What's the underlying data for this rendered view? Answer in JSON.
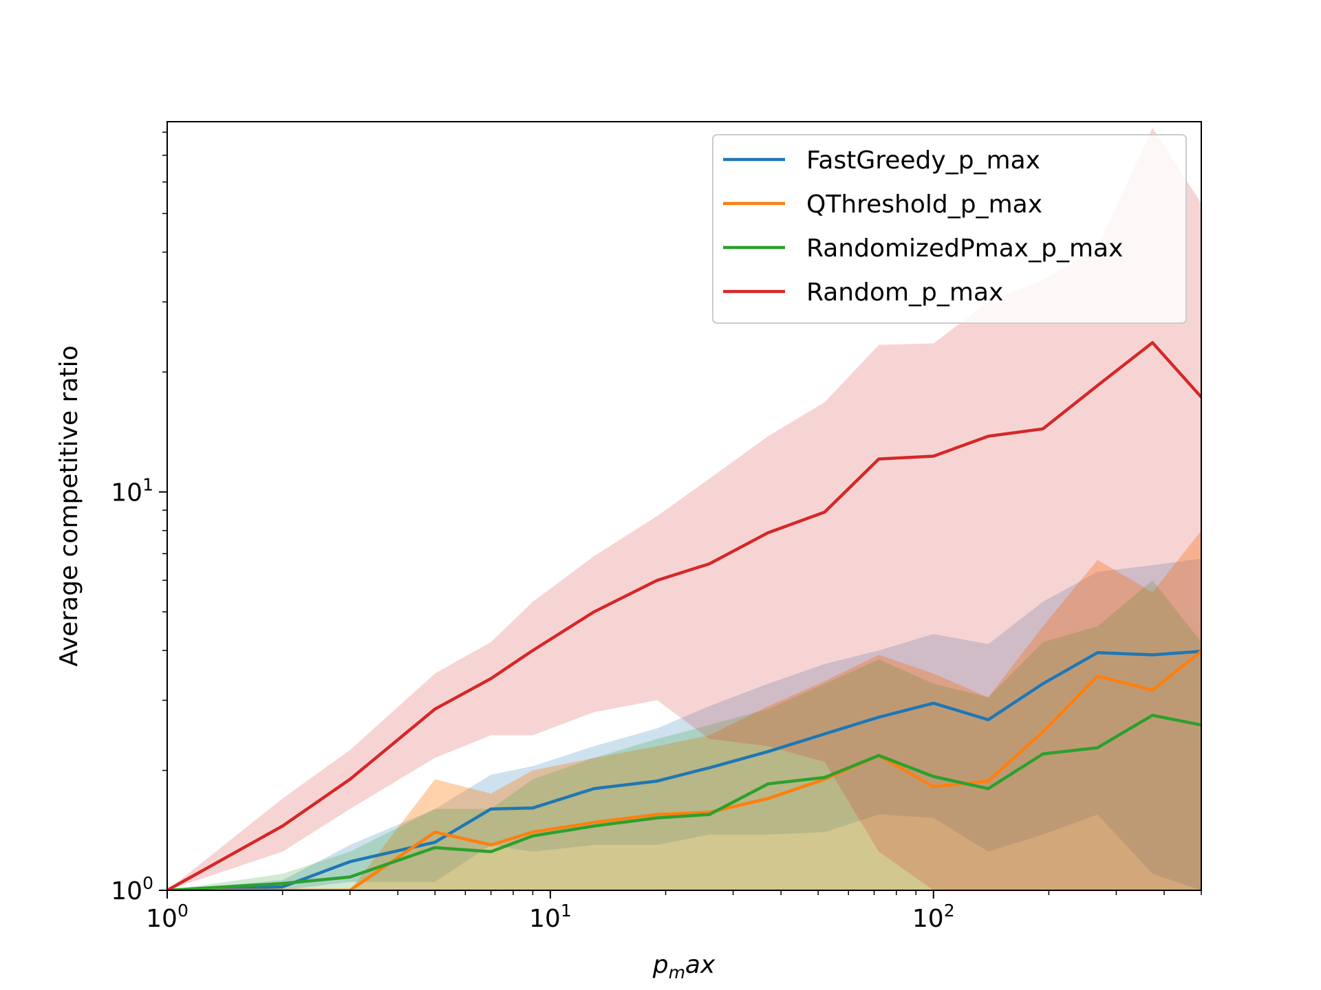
{
  "chart_data": {
    "type": "line",
    "xscale": "log",
    "yscale": "log",
    "xlim": [
      1,
      500
    ],
    "ylim": [
      1,
      85
    ],
    "xlabel": {
      "base": "p",
      "sub": "m",
      "rest": "ax"
    },
    "ylabel": "Average competitive ratio",
    "grid": false,
    "legend_position": "top-right",
    "x_ticks": [
      {
        "value": 1,
        "base": "10",
        "exp": "0"
      },
      {
        "value": 10,
        "base": "10",
        "exp": "1"
      },
      {
        "value": 100,
        "base": "10",
        "exp": "2"
      }
    ],
    "y_ticks": [
      {
        "value": 1,
        "base": "10",
        "exp": "0"
      },
      {
        "value": 10,
        "base": "10",
        "exp": "1"
      }
    ],
    "x": [
      1,
      2,
      3,
      5,
      7,
      9,
      13,
      19,
      26,
      37,
      52,
      72,
      100,
      139,
      193,
      268,
      373,
      500
    ],
    "series": [
      {
        "name": "FastGreedy_p_max",
        "color": "#1f77b4",
        "band_opacity": 0.22,
        "values": [
          1.0,
          1.02,
          1.18,
          1.32,
          1.6,
          1.61,
          1.8,
          1.88,
          2.03,
          2.23,
          2.47,
          2.72,
          2.95,
          2.68,
          3.3,
          3.95,
          3.9,
          3.98
        ],
        "upper": [
          1.0,
          1.06,
          1.3,
          1.6,
          1.95,
          2.05,
          2.3,
          2.55,
          2.9,
          3.3,
          3.7,
          4.0,
          4.4,
          4.15,
          5.3,
          6.3,
          6.55,
          6.8
        ],
        "lower": [
          1.0,
          1.0,
          1.05,
          1.05,
          1.3,
          1.25,
          1.3,
          1.3,
          1.38,
          1.38,
          1.4,
          1.55,
          1.52,
          1.25,
          1.38,
          1.55,
          1.1,
          1.0
        ]
      },
      {
        "name": "QThreshold_p_max",
        "color": "#ff7f0e",
        "band_opacity": 0.35,
        "values": [
          1.0,
          1.0,
          1.0,
          1.4,
          1.3,
          1.4,
          1.48,
          1.55,
          1.57,
          1.7,
          1.9,
          2.18,
          1.82,
          1.88,
          2.5,
          3.45,
          3.18,
          3.98
        ],
        "upper": [
          1.0,
          1.0,
          1.0,
          1.9,
          1.75,
          2.0,
          2.15,
          2.3,
          2.45,
          2.9,
          3.35,
          3.9,
          3.5,
          3.05,
          4.6,
          6.75,
          5.6,
          8.0
        ],
        "lower": [
          1.0,
          1.0,
          1.0,
          1.0,
          1.0,
          1.0,
          1.0,
          1.0,
          1.0,
          1.0,
          1.0,
          1.0,
          1.0,
          1.0,
          1.0,
          1.0,
          1.0,
          1.0
        ]
      },
      {
        "name": "RandomizedPmax_p_max",
        "color": "#2ca02c",
        "band_opacity": 0.22,
        "values": [
          1.0,
          1.04,
          1.08,
          1.28,
          1.25,
          1.37,
          1.45,
          1.52,
          1.55,
          1.85,
          1.92,
          2.18,
          1.93,
          1.8,
          2.2,
          2.28,
          2.75,
          2.6
        ],
        "upper": [
          1.0,
          1.1,
          1.25,
          1.6,
          1.6,
          1.9,
          2.15,
          2.4,
          2.6,
          2.85,
          3.3,
          3.8,
          3.3,
          3.05,
          4.2,
          4.6,
          6.0,
          4.2
        ],
        "lower": [
          1.0,
          1.0,
          1.0,
          1.0,
          1.0,
          1.0,
          1.0,
          1.0,
          1.0,
          1.0,
          1.0,
          1.0,
          1.0,
          1.0,
          1.0,
          1.0,
          1.0,
          1.0
        ]
      },
      {
        "name": "Random_p_max",
        "color": "#d62728",
        "band_opacity": 0.2,
        "values": [
          1.0,
          1.45,
          1.9,
          2.85,
          3.4,
          4.0,
          5.0,
          6.0,
          6.6,
          7.9,
          8.9,
          12.1,
          12.3,
          13.8,
          14.4,
          18.5,
          23.7,
          17.3
        ],
        "upper": [
          1.0,
          1.7,
          2.25,
          3.5,
          4.2,
          5.3,
          6.9,
          8.7,
          10.8,
          13.8,
          16.8,
          23.4,
          23.6,
          30.0,
          34.0,
          41.0,
          82.0,
          53.0
        ],
        "lower": [
          1.0,
          1.25,
          1.6,
          2.15,
          2.45,
          2.45,
          2.8,
          3.0,
          2.4,
          2.3,
          2.1,
          1.25,
          1.0,
          1.0,
          1.0,
          1.0,
          1.0,
          1.0
        ]
      }
    ]
  }
}
